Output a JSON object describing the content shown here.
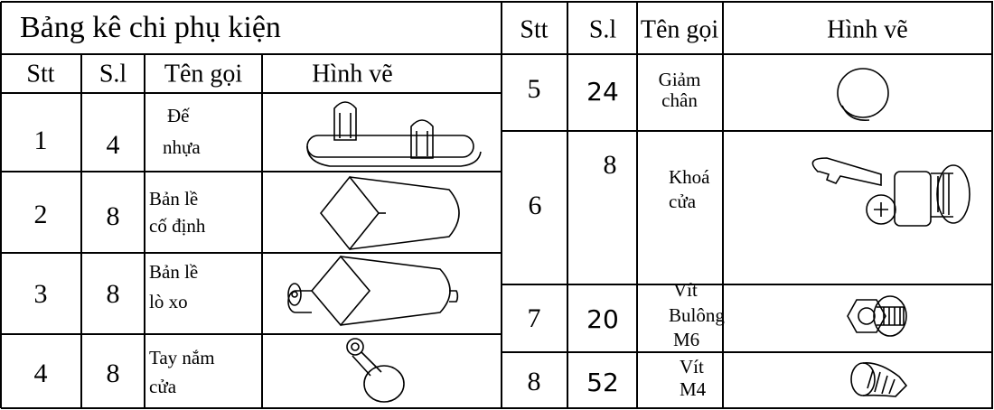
{
  "left": {
    "title": "Bảng kê chi  phụ kiện",
    "headers": [
      "Stt",
      "S.l",
      "Tên gọi",
      "Hình vẽ"
    ],
    "rows": [
      {
        "stt": "1",
        "qty": "4",
        "name": [
          "Đế",
          "nhựa"
        ]
      },
      {
        "stt": "2",
        "qty": "8",
        "name": [
          "Bản lề",
          "cố định"
        ]
      },
      {
        "stt": "3",
        "qty": "8",
        "name": [
          "Bản lề",
          "lò xo"
        ]
      },
      {
        "stt": "4",
        "qty": "8",
        "name": [
          "Tay nắm",
          "cửa"
        ]
      }
    ]
  },
  "right": {
    "headers": [
      "Stt",
      "S.l",
      "Tên gọi",
      "Hình vẽ"
    ],
    "rows": [
      {
        "stt": "5",
        "qty": "24",
        "name": [
          "Giảm",
          "chân"
        ]
      },
      {
        "stt": "6",
        "qty": "8",
        "name": [
          "Khoá",
          "cửa"
        ]
      },
      {
        "stt": "7",
        "qty": "20",
        "name": [
          "Vít",
          "Bulông",
          "M6"
        ]
      },
      {
        "stt": "8",
        "qty": "52",
        "name": [
          "Vít",
          "M4"
        ]
      }
    ]
  }
}
